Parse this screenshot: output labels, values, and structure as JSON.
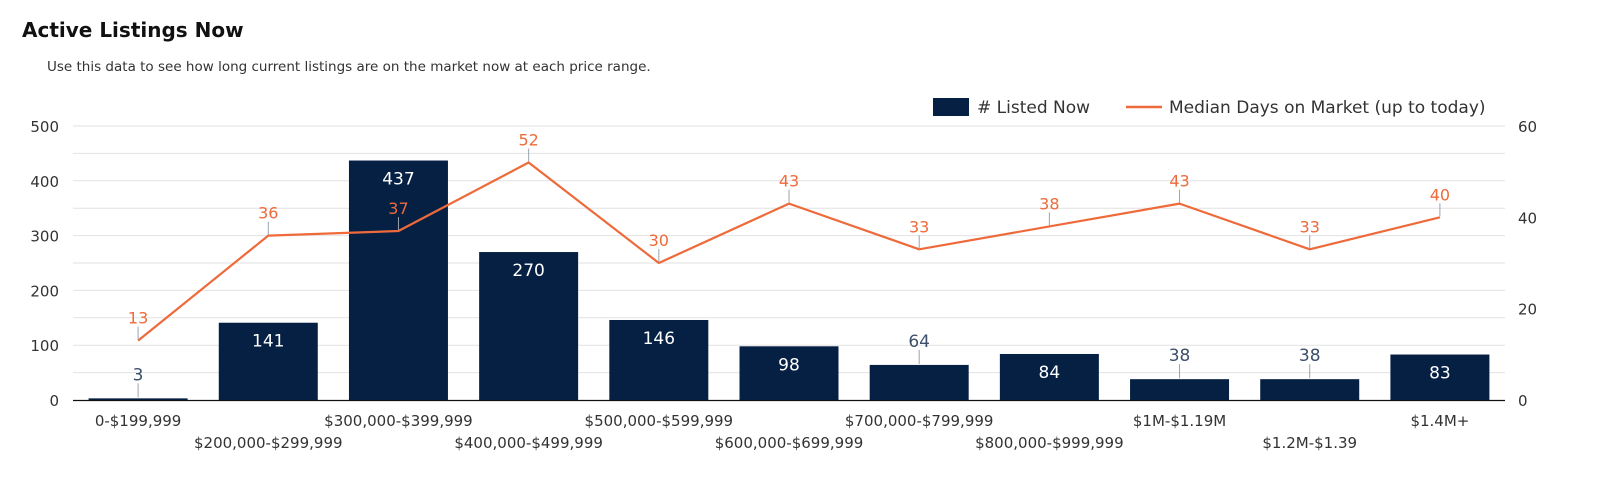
{
  "header": {
    "title": "Active Listings Now",
    "subtitle": "Use this data to see how long current listings are on the market now at each price range."
  },
  "colors": {
    "bar": "#062044",
    "line": "#ee6a3a",
    "grid": "#e2e2e2",
    "axis": "#111111"
  },
  "chart_data": {
    "type": "bar",
    "categories": [
      "0-$199,999",
      "$200,000-$299,999",
      "$300,000-$399,999",
      "$400,000-$499,999",
      "$500,000-$599,999",
      "$600,000-$699,999",
      "$700,000-$799,999",
      "$800,000-$999,999",
      "$1M-$1.19M",
      "$1.2M-$1.39",
      "$1.4M+"
    ],
    "series": [
      {
        "name": "# Listed Now",
        "type": "bar",
        "axis": "left",
        "values": [
          3,
          141,
          437,
          270,
          146,
          98,
          64,
          84,
          38,
          38,
          83
        ]
      },
      {
        "name": "Median Days on Market (up to today)",
        "type": "line",
        "axis": "right",
        "values": [
          13,
          36,
          37,
          52,
          30,
          43,
          33,
          38,
          43,
          33,
          40
        ]
      }
    ],
    "y_left": {
      "min": 0,
      "max": 500,
      "ticks": [
        0,
        100,
        200,
        300,
        400,
        500
      ]
    },
    "y_right": {
      "min": 0,
      "max": 60,
      "ticks": [
        0,
        20,
        40,
        60
      ]
    },
    "grid": true,
    "legend": "top-right"
  }
}
